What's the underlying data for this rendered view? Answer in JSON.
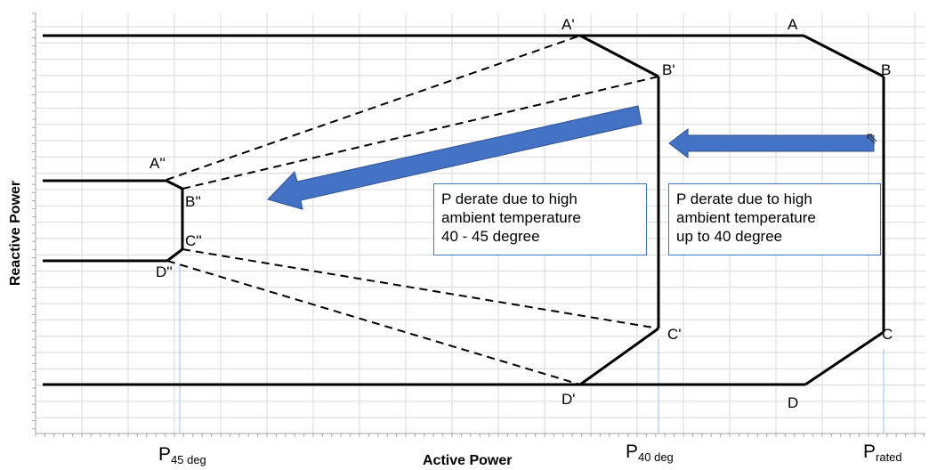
{
  "points": {
    "A": "A",
    "B": "B",
    "C": "C",
    "D": "D",
    "A1": "A'",
    "B1": "B'",
    "C1": "C'",
    "D1": "D'",
    "A2": "A''",
    "B2": "B''",
    "C2": "C''",
    "D2": "D''"
  },
  "power_labels": {
    "p45_main": "P",
    "p45_sub": "45 deg",
    "p40_main": "P",
    "p40_sub": "40 deg",
    "prated_main": "P",
    "prated_sub": "rated"
  },
  "axes": {
    "x_title": "Active Power",
    "y_title": "Reactive Power"
  },
  "notes": {
    "left": [
      "P derate due to high",
      "ambient temperature",
      "40 - 45 degree"
    ],
    "right": [
      "P derate due to high",
      "ambient temperature",
      "up to 40 degree"
    ]
  },
  "colors": {
    "arrow": "#4472c4",
    "grid": "#d9d9d9",
    "line": "#000000",
    "guide": "#9dc3e6"
  },
  "icons": {
    "cursor": "mouse-pointer-icon"
  }
}
